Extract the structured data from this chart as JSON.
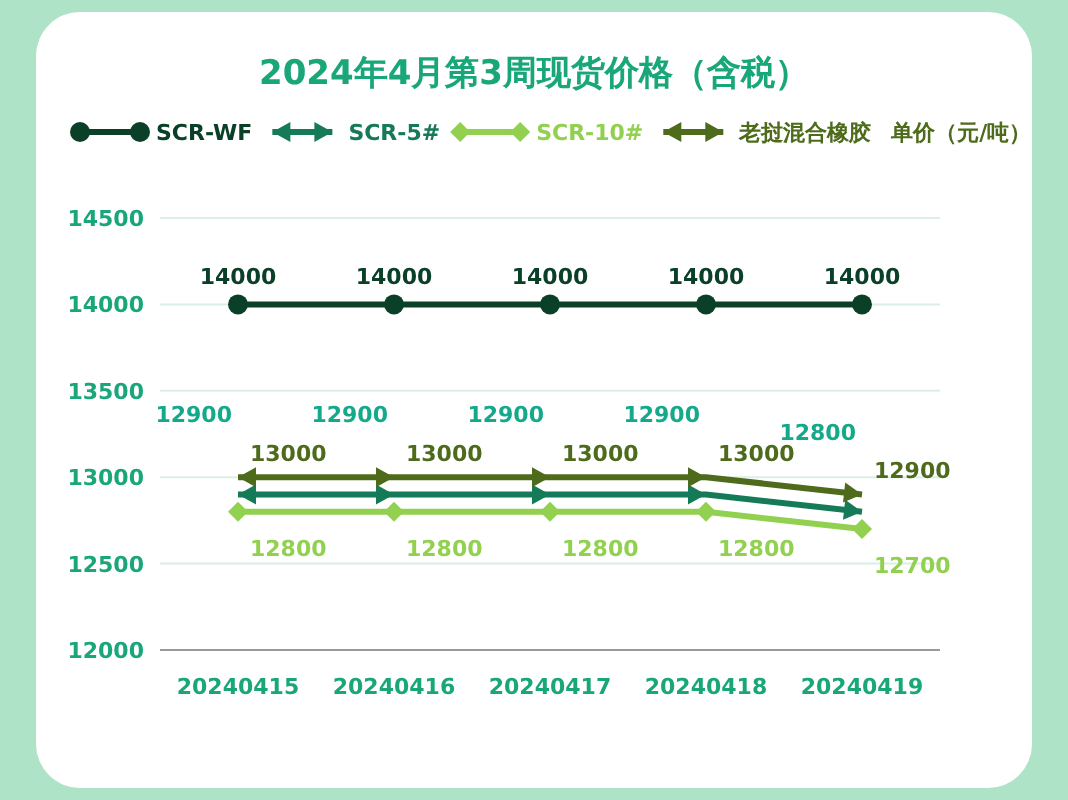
{
  "chart_data": {
    "type": "line",
    "title": "2024年4月第3周现货价格（含税）",
    "ylabel": "单价（元/吨）",
    "categories": [
      "20240415",
      "20240416",
      "20240417",
      "20240418",
      "20240419"
    ],
    "series": [
      {
        "name": "SCR-WF",
        "color": "#0b4028",
        "marker": "circle",
        "values": [
          14000,
          14000,
          14000,
          14000,
          14000
        ]
      },
      {
        "name": "SCR-5#",
        "color": "#157a57",
        "marker": "triangle",
        "values": [
          12900,
          12900,
          12900,
          12900,
          12800
        ]
      },
      {
        "name": "SCR-10#",
        "color": "#92d050",
        "marker": "diamond",
        "values": [
          12800,
          12800,
          12800,
          12800,
          12700
        ]
      },
      {
        "name": "老挝混合橡胶",
        "color": "#4e6b1c",
        "marker": "triangle",
        "values": [
          13000,
          13000,
          13000,
          13000,
          12900
        ]
      }
    ],
    "ylim": [
      12000,
      14500
    ],
    "yticks": [
      12000,
      12500,
      13000,
      13500,
      14000,
      14500
    ],
    "grid": "y",
    "legend": "top",
    "data_labels": true
  }
}
